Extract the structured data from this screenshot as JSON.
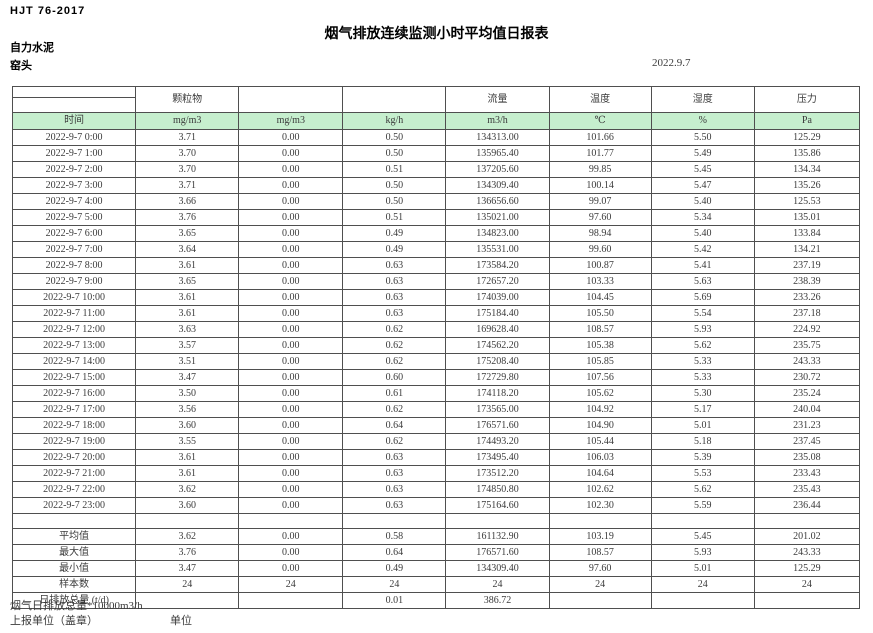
{
  "page": {
    "standard": "HJT  76-2017",
    "title": "烟气排放连续监测小时平均值日报表",
    "company": "自力水泥",
    "location": "窑头",
    "date": "2022.9.7"
  },
  "table": {
    "time_header": "时间",
    "column_groups": [
      "颗粒物",
      "",
      "",
      "流量",
      "温度",
      "湿度",
      "压力"
    ],
    "units": [
      "mg/m3",
      "mg/m3",
      "kg/h",
      "m3/h",
      "℃",
      "%",
      "Pa"
    ],
    "rows": [
      {
        "time": "2022-9-7 0:00",
        "values": [
          "3.71",
          "0.00",
          "0.50",
          "134313.00",
          "101.66",
          "5.50",
          "125.29"
        ]
      },
      {
        "time": "2022-9-7 1:00",
        "values": [
          "3.70",
          "0.00",
          "0.50",
          "135965.40",
          "101.77",
          "5.49",
          "135.86"
        ]
      },
      {
        "time": "2022-9-7 2:00",
        "values": [
          "3.70",
          "0.00",
          "0.51",
          "137205.60",
          "99.85",
          "5.45",
          "134.34"
        ]
      },
      {
        "time": "2022-9-7 3:00",
        "values": [
          "3.71",
          "0.00",
          "0.50",
          "134309.40",
          "100.14",
          "5.47",
          "135.26"
        ]
      },
      {
        "time": "2022-9-7 4:00",
        "values": [
          "3.66",
          "0.00",
          "0.50",
          "136656.60",
          "99.07",
          "5.40",
          "125.53"
        ]
      },
      {
        "time": "2022-9-7 5:00",
        "values": [
          "3.76",
          "0.00",
          "0.51",
          "135021.00",
          "97.60",
          "5.34",
          "135.01"
        ]
      },
      {
        "time": "2022-9-7 6:00",
        "values": [
          "3.65",
          "0.00",
          "0.49",
          "134823.00",
          "98.94",
          "5.40",
          "133.84"
        ]
      },
      {
        "time": "2022-9-7 7:00",
        "values": [
          "3.64",
          "0.00",
          "0.49",
          "135531.00",
          "99.60",
          "5.42",
          "134.21"
        ]
      },
      {
        "time": "2022-9-7 8:00",
        "values": [
          "3.61",
          "0.00",
          "0.63",
          "173584.20",
          "100.87",
          "5.41",
          "237.19"
        ]
      },
      {
        "time": "2022-9-7 9:00",
        "values": [
          "3.65",
          "0.00",
          "0.63",
          "172657.20",
          "103.33",
          "5.63",
          "238.39"
        ]
      },
      {
        "time": "2022-9-7 10:00",
        "values": [
          "3.61",
          "0.00",
          "0.63",
          "174039.00",
          "104.45",
          "5.69",
          "233.26"
        ]
      },
      {
        "time": "2022-9-7 11:00",
        "values": [
          "3.61",
          "0.00",
          "0.63",
          "175184.40",
          "105.50",
          "5.54",
          "237.18"
        ]
      },
      {
        "time": "2022-9-7 12:00",
        "values": [
          "3.63",
          "0.00",
          "0.62",
          "169628.40",
          "108.57",
          "5.93",
          "224.92"
        ]
      },
      {
        "time": "2022-9-7 13:00",
        "values": [
          "3.57",
          "0.00",
          "0.62",
          "174562.20",
          "105.38",
          "5.62",
          "235.75"
        ]
      },
      {
        "time": "2022-9-7 14:00",
        "values": [
          "3.51",
          "0.00",
          "0.62",
          "175208.40",
          "105.85",
          "5.33",
          "243.33"
        ]
      },
      {
        "time": "2022-9-7 15:00",
        "values": [
          "3.47",
          "0.00",
          "0.60",
          "172729.80",
          "107.56",
          "5.33",
          "230.72"
        ]
      },
      {
        "time": "2022-9-7 16:00",
        "values": [
          "3.50",
          "0.00",
          "0.61",
          "174118.20",
          "105.62",
          "5.30",
          "235.24"
        ]
      },
      {
        "time": "2022-9-7 17:00",
        "values": [
          "3.56",
          "0.00",
          "0.62",
          "173565.00",
          "104.92",
          "5.17",
          "240.04"
        ]
      },
      {
        "time": "2022-9-7 18:00",
        "values": [
          "3.60",
          "0.00",
          "0.64",
          "176571.60",
          "104.90",
          "5.01",
          "231.23"
        ]
      },
      {
        "time": "2022-9-7 19:00",
        "values": [
          "3.55",
          "0.00",
          "0.62",
          "174493.20",
          "105.44",
          "5.18",
          "237.45"
        ]
      },
      {
        "time": "2022-9-7 20:00",
        "values": [
          "3.61",
          "0.00",
          "0.63",
          "173495.40",
          "106.03",
          "5.39",
          "235.08"
        ]
      },
      {
        "time": "2022-9-7 21:00",
        "values": [
          "3.61",
          "0.00",
          "0.63",
          "173512.20",
          "104.64",
          "5.53",
          "233.43"
        ]
      },
      {
        "time": "2022-9-7 22:00",
        "values": [
          "3.62",
          "0.00",
          "0.63",
          "174850.80",
          "102.62",
          "5.62",
          "235.43"
        ]
      },
      {
        "time": "2022-9-7 23:00",
        "values": [
          "3.60",
          "0.00",
          "0.63",
          "175164.60",
          "102.30",
          "5.59",
          "236.44"
        ]
      }
    ],
    "summary_rows": [
      {
        "label": "平均值",
        "values": [
          "3.62",
          "0.00",
          "0.58",
          "161132.90",
          "103.19",
          "5.45",
          "201.02"
        ]
      },
      {
        "label": "最大值",
        "values": [
          "3.76",
          "0.00",
          "0.64",
          "176571.60",
          "108.57",
          "5.93",
          "243.33"
        ]
      },
      {
        "label": "最小值",
        "values": [
          "3.47",
          "0.00",
          "0.49",
          "134309.40",
          "97.60",
          "5.01",
          "125.29"
        ]
      },
      {
        "label": "样本数",
        "values": [
          "24",
          "24",
          "24",
          "24",
          "24",
          "24",
          "24"
        ]
      },
      {
        "label": "日排放总量 (t/d)",
        "values": [
          "",
          "",
          "0.01",
          "386.72",
          "",
          "",
          ""
        ]
      }
    ]
  },
  "footer": {
    "note": "烟气日排放总量*10000m3/h",
    "report_unit_label": "上报单位（盖章）",
    "unit_label": "单位"
  },
  "colors": {
    "header_green": "#c6efce",
    "border": "#4f4f4f",
    "text": "#3b3b3b"
  }
}
